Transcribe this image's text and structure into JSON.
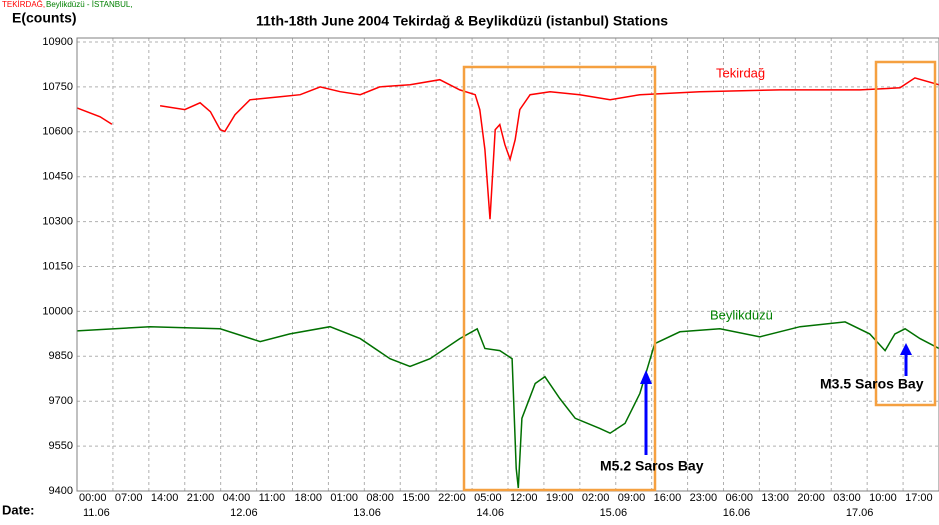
{
  "chart_data": {
    "type": "line",
    "legend_parts": [
      "TEKİRDAĞ,",
      "Beylikdüzü - İSTANBUL,"
    ],
    "ylabel": "E(counts)",
    "title": "11th-18th June 2004  Tekirdağ & Beylikdüzü (istanbul) Stations",
    "xlabel": "Date:",
    "xlim": [
      0,
      168
    ],
    "ylim": [
      9400,
      10900
    ],
    "yticks": [
      9400,
      9550,
      9700,
      9850,
      10000,
      10150,
      10300,
      10450,
      10600,
      10750,
      10900
    ],
    "xticks": [
      {
        "value": 0,
        "label": "00:00"
      },
      {
        "value": 7,
        "label": "07:00"
      },
      {
        "value": 14,
        "label": "14:00"
      },
      {
        "value": 21,
        "label": "21:00"
      },
      {
        "value": 28,
        "label": "04:00"
      },
      {
        "value": 35,
        "label": "11:00"
      },
      {
        "value": 42,
        "label": "18:00"
      },
      {
        "value": 49,
        "label": "01:00"
      },
      {
        "value": 56,
        "label": "08:00"
      },
      {
        "value": 63,
        "label": "15:00"
      },
      {
        "value": 70,
        "label": "22:00"
      },
      {
        "value": 77,
        "label": "05:00"
      },
      {
        "value": 84,
        "label": "12:00"
      },
      {
        "value": 91,
        "label": "19:00"
      },
      {
        "value": 98,
        "label": "02:00"
      },
      {
        "value": 105,
        "label": "09:00"
      },
      {
        "value": 112,
        "label": "16:00"
      },
      {
        "value": 119,
        "label": "23:00"
      },
      {
        "value": 126,
        "label": "06:00"
      },
      {
        "value": 133,
        "label": "13:00"
      },
      {
        "value": 140,
        "label": "20:00"
      },
      {
        "value": 147,
        "label": "03:00"
      },
      {
        "value": 154,
        "label": "10:00"
      },
      {
        "value": 161,
        "label": "17:00"
      }
    ],
    "date_ticks": [
      {
        "value": 0,
        "label": "11.06"
      },
      {
        "value": 24,
        "label": "12.06"
      },
      {
        "value": 48,
        "label": "13.06"
      },
      {
        "value": 72,
        "label": "14.06"
      },
      {
        "value": 96,
        "label": "15.06"
      },
      {
        "value": 120,
        "label": "16.06"
      },
      {
        "value": 144,
        "label": "17.06"
      }
    ],
    "grid": true,
    "series": [
      {
        "name": "Tekirdağ",
        "color": "#ff0000",
        "x": [
          0,
          4.5,
          6.8,
          10,
          16.2,
          21,
          24,
          26,
          27.9,
          28.8,
          30.8,
          33.7,
          39.6,
          43.5,
          47.4,
          51.3,
          55.2,
          59,
          64.9,
          70.7,
          74.6,
          77.6,
          78.5,
          79.5,
          80.5,
          81.5,
          82.4,
          83.4,
          84.4,
          85.4,
          86.3,
          88.3,
          92.2,
          98,
          103.9,
          109.7,
          121.4,
          137,
          152.6,
          160.4,
          163.3,
          168
        ],
        "values": [
          10680,
          10650,
          10625,
          null,
          10687,
          10674,
          10697,
          10667,
          10607,
          10601,
          10657,
          10707,
          10717,
          10724,
          10750,
          10734,
          10724,
          10750,
          10757,
          10774,
          10740,
          10724,
          10674,
          10541,
          10308,
          10607,
          10624,
          10557,
          10508,
          10574,
          10674,
          10724,
          10734,
          10724,
          10707,
          10724,
          10734,
          10740,
          10740,
          10747,
          10780,
          10757
        ]
      },
      {
        "name": "Beylikdüzü",
        "color": "#007000",
        "x": [
          0,
          14.2,
          27.9,
          35.7,
          41.5,
          49.3,
          55.2,
          61,
          64.9,
          68.8,
          74.6,
          78,
          79.5,
          82.4,
          84.8,
          85.6,
          86,
          86.7,
          89.3,
          91.2,
          94.1,
          97.1,
          101.9,
          103.9,
          106.8,
          109.7,
          112.6,
          117.5,
          125.3,
          133.1,
          140.9,
          149.7,
          154.5,
          157.5,
          159.4,
          161.4,
          164.3,
          168
        ],
        "values": [
          9935,
          9949,
          9942,
          9899,
          9925,
          9949,
          9909,
          9842,
          9816,
          9842,
          9909,
          9942,
          9876,
          9869,
          9842,
          9476,
          9410,
          9643,
          9759,
          9782,
          9709,
          9643,
          9609,
          9593,
          9626,
          9726,
          9892,
          9932,
          9942,
          9915,
          9949,
          9965,
          9925,
          9869,
          9925,
          9942,
          9909,
          9876
        ]
      }
    ],
    "annotations": [
      "M5.2 Saros Bay",
      "M3.5 Saros Bay"
    ]
  }
}
